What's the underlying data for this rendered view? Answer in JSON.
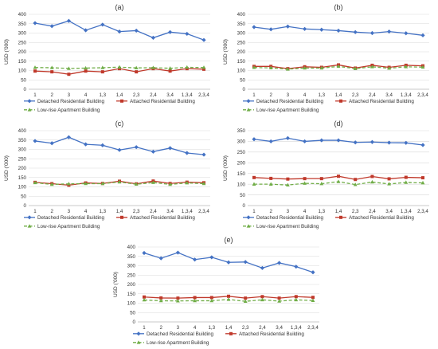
{
  "colors": {
    "detached": "#4472c4",
    "attached": "#c0392b",
    "lowrise": "#70ad47"
  },
  "chart_data": [
    {
      "type": "line",
      "title": "(a)",
      "ylabel": "USD ('000)",
      "ylim": [
        0,
        400
      ],
      "yticks": [
        0,
        50,
        100,
        150,
        200,
        250,
        300,
        350,
        400
      ],
      "categories": [
        "1",
        "2",
        "3",
        "4",
        "1,3",
        "1,4",
        "2,3",
        "2,4",
        "3,4",
        "1,3,4",
        "2,3,4"
      ],
      "series": [
        {
          "name": "Detached Residential Building",
          "values": [
            353,
            337,
            365,
            315,
            345,
            308,
            313,
            275,
            305,
            296,
            263
          ]
        },
        {
          "name": "Attached Residential Building",
          "values": [
            97,
            93,
            80,
            97,
            93,
            110,
            93,
            110,
            97,
            110,
            107
          ]
        },
        {
          "name": "Low-rise Apartment Building",
          "values": [
            116,
            115,
            111,
            113,
            115,
            118,
            114,
            115,
            112,
            117,
            116
          ]
        }
      ],
      "legend": "bottom"
    },
    {
      "type": "line",
      "title": "(b)",
      "ylabel": "USD ('000)",
      "ylim": [
        0,
        400
      ],
      "yticks": [
        0,
        50,
        100,
        150,
        200,
        250,
        300,
        350,
        400
      ],
      "categories": [
        "1",
        "2",
        "3",
        "4",
        "1,3",
        "1,4",
        "2,3",
        "2,4",
        "3,4",
        "1,3,4",
        "2,3,4"
      ],
      "series": [
        {
          "name": "Detached Residential Building",
          "values": [
            332,
            320,
            335,
            322,
            318,
            313,
            305,
            300,
            308,
            299,
            288
          ]
        },
        {
          "name": "Attached Residential Building",
          "values": [
            122,
            122,
            110,
            120,
            117,
            130,
            113,
            128,
            117,
            128,
            125
          ]
        },
        {
          "name": "Low-rise Apartment Building",
          "values": [
            116,
            114,
            107,
            113,
            113,
            122,
            110,
            120,
            112,
            120,
            118
          ]
        }
      ],
      "legend": "bottom"
    },
    {
      "type": "line",
      "title": "(c)",
      "ylabel": "USD ('000)",
      "ylim": [
        0,
        400
      ],
      "yticks": [
        0,
        50,
        100,
        150,
        200,
        250,
        300,
        350,
        400
      ],
      "categories": [
        "1",
        "2",
        "3",
        "4",
        "1,3",
        "1,4",
        "2,3",
        "2,4",
        "3,4",
        "1,3,4",
        "2,3,4"
      ],
      "series": [
        {
          "name": "Detached Residential Building",
          "values": [
            345,
            333,
            365,
            327,
            322,
            297,
            312,
            288,
            307,
            281,
            272
          ]
        },
        {
          "name": "Attached Residential Building",
          "values": [
            124,
            117,
            109,
            121,
            118,
            130,
            116,
            131,
            118,
            125,
            122
          ]
        },
        {
          "name": "Low-rise Apartment Building",
          "values": [
            122,
            113,
            116,
            117,
            117,
            126,
            114,
            123,
            113,
            121,
            117
          ]
        }
      ],
      "legend": "bottom"
    },
    {
      "type": "line",
      "title": "(d)",
      "ylabel": "USD ('000)",
      "ylim": [
        0,
        350
      ],
      "yticks": [
        0,
        50,
        100,
        150,
        200,
        250,
        300,
        350
      ],
      "categories": [
        "1",
        "2",
        "3",
        "4",
        "1,3",
        "1,4",
        "2,3",
        "2,4",
        "3,4",
        "1,3,4",
        "2,3,4"
      ],
      "series": [
        {
          "name": "Detached Residential Building",
          "values": [
            310,
            300,
            315,
            300,
            305,
            305,
            295,
            297,
            294,
            293,
            283
          ]
        },
        {
          "name": "Attached Residential Building",
          "values": [
            131,
            127,
            124,
            126,
            126,
            137,
            122,
            136,
            125,
            132,
            130
          ]
        },
        {
          "name": "Low-rise Apartment Building",
          "values": [
            100,
            100,
            96,
            104,
            102,
            112,
            98,
            110,
            101,
            108,
            106
          ]
        }
      ],
      "legend": "bottom"
    },
    {
      "type": "line",
      "title": "(e)",
      "ylabel": "USD ('000)",
      "ylim": [
        0,
        400
      ],
      "yticks": [
        0,
        50,
        100,
        150,
        200,
        250,
        300,
        350,
        400
      ],
      "categories": [
        "1",
        "2",
        "3",
        "4",
        "1,3",
        "1,4",
        "2,3",
        "2,4",
        "3,4",
        "1,3,4",
        "2,3,4"
      ],
      "series": [
        {
          "name": "Detached Residential Building",
          "values": [
            368,
            340,
            370,
            333,
            345,
            318,
            320,
            288,
            315,
            295,
            265
          ]
        },
        {
          "name": "Attached Residential Building",
          "values": [
            133,
            128,
            127,
            130,
            130,
            137,
            127,
            135,
            127,
            135,
            131
          ]
        },
        {
          "name": "Low-rise Apartment Building",
          "values": [
            117,
            113,
            112,
            113,
            113,
            120,
            110,
            118,
            111,
            118,
            114
          ]
        }
      ],
      "legend": "bottom"
    }
  ]
}
